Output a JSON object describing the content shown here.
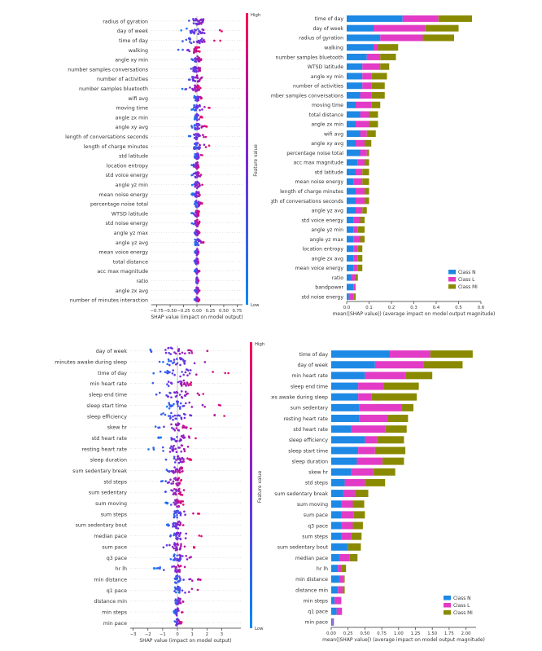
{
  "colors": {
    "classN": "#1e88e5",
    "classL": "#e23bc6",
    "classMl": "#8a8a00",
    "low": "#008bfb",
    "high": "#ff0052",
    "axis": "#333333"
  },
  "chart_data": [
    {
      "type": "scatter",
      "subtype": "shap-beeswarm",
      "xlabel": "SHAP value (impact on model output)",
      "colorbar_label": "Feature value",
      "colorbar_high": "High",
      "colorbar_low": "Low",
      "xlim": [
        -0.85,
        0.85
      ],
      "xticks": [
        -0.75,
        -0.5,
        -0.25,
        0.0,
        0.25,
        0.5,
        0.75
      ],
      "xtick_labels": [
        "−0.75",
        "−0.50",
        "−0.25",
        "0.00",
        "0.25",
        "0.50",
        "0.75"
      ],
      "features": [
        {
          "name": "radius of gyration",
          "min": -0.3,
          "max": 0.35,
          "spread": 0.14
        },
        {
          "name": "day of week",
          "min": -0.3,
          "max": 0.5,
          "spread": 0.16
        },
        {
          "name": "time of day",
          "min": -0.3,
          "max": 0.45,
          "spread": 0.15
        },
        {
          "name": "walking",
          "min": -0.35,
          "max": 0.05,
          "spread": 0.06
        },
        {
          "name": "angle xy min",
          "min": -0.1,
          "max": 0.1,
          "spread": 0.05
        },
        {
          "name": "number samples conversations",
          "min": -0.15,
          "max": 0.15,
          "spread": 0.07
        },
        {
          "name": "number of activities",
          "min": -0.2,
          "max": 0.15,
          "spread": 0.08
        },
        {
          "name": "number samples bluetooth",
          "min": -0.3,
          "max": 0.1,
          "spread": 0.05
        },
        {
          "name": "wifi avg",
          "min": -0.05,
          "max": 0.1,
          "spread": 0.03
        },
        {
          "name": "moving time",
          "min": -0.1,
          "max": 0.25,
          "spread": 0.06
        },
        {
          "name": "angle zx min",
          "min": -0.05,
          "max": 0.1,
          "spread": 0.04
        },
        {
          "name": "angle xy avg",
          "min": -0.1,
          "max": 0.2,
          "spread": 0.05
        },
        {
          "name": "length of conversations seconds",
          "min": -0.15,
          "max": 0.2,
          "spread": 0.06
        },
        {
          "name": "length of charge minutes",
          "min": -0.1,
          "max": 0.25,
          "spread": 0.06
        },
        {
          "name": "std latitude",
          "min": -0.05,
          "max": 0.1,
          "spread": 0.04
        },
        {
          "name": "location entropy",
          "min": -0.1,
          "max": 0.05,
          "spread": 0.03
        },
        {
          "name": "std voice energy",
          "min": -0.1,
          "max": 0.1,
          "spread": 0.04
        },
        {
          "name": "angle yz min",
          "min": -0.1,
          "max": 0.1,
          "spread": 0.04
        },
        {
          "name": "mean noise energy",
          "min": -0.1,
          "max": 0.1,
          "spread": 0.04
        },
        {
          "name": "percentage noise total",
          "min": -0.05,
          "max": 0.1,
          "spread": 0.04
        },
        {
          "name": "WTSD latitude",
          "min": -0.1,
          "max": 0.05,
          "spread": 0.03
        },
        {
          "name": "std noise energy",
          "min": -0.1,
          "max": 0.05,
          "spread": 0.03
        },
        {
          "name": "angle yz max",
          "min": -0.05,
          "max": 0.05,
          "spread": 0.03
        },
        {
          "name": "angle yz avg",
          "min": -0.05,
          "max": 0.15,
          "spread": 0.04
        },
        {
          "name": "mean voice energy",
          "min": -0.05,
          "max": 0.05,
          "spread": 0.03
        },
        {
          "name": "total distance",
          "min": -0.05,
          "max": 0.05,
          "spread": 0.03
        },
        {
          "name": "acc max magnitude",
          "min": -0.05,
          "max": 0.05,
          "spread": 0.03
        },
        {
          "name": "ratio",
          "min": -0.02,
          "max": 0.03,
          "spread": 0.015
        },
        {
          "name": "angle zx avg",
          "min": -0.05,
          "max": 0.05,
          "spread": 0.03
        },
        {
          "name": "number of minutes interaction",
          "min": -0.05,
          "max": 0.05,
          "spread": 0.025
        }
      ]
    },
    {
      "type": "bar",
      "orientation": "horizontal",
      "stacked": true,
      "xlabel": "mean(|SHAP value|) (average impact on model output magnitude)",
      "xlim": [
        0,
        0.6
      ],
      "xticks": [
        0.0,
        0.1,
        0.2,
        0.3,
        0.4,
        0.5,
        0.6
      ],
      "xtick_labels": [
        "0.0",
        "0.1",
        "0.2",
        "0.3",
        "0.4",
        "0.5",
        "0.6"
      ],
      "legend_position": "bottom-right",
      "categories": [
        "time of day",
        "day of week",
        "radius of gyration",
        "walking",
        "number samples bluetooth",
        "WTSD latitude",
        "angle xy min",
        "number of activities",
        "number samples conversations",
        "moving time",
        "total distance",
        "angle zx min",
        "wifi avg",
        "angle xy avg",
        "percentage noise total",
        "acc max magnitude",
        "std latitude",
        "mean noise energy",
        "length of charge minutes",
        "length of conversations seconds",
        "angle yz avg",
        "std voice energy",
        "angle yz min",
        "angle yz max",
        "location entropy",
        "angle zx avg",
        "mean voice energy",
        "ratio",
        "bandpower",
        "std noise energy"
      ],
      "series": [
        {
          "name": "Class N",
          "values": [
            0.25,
            0.12,
            0.15,
            0.12,
            0.09,
            0.07,
            0.07,
            0.07,
            0.06,
            0.04,
            0.06,
            0.04,
            0.06,
            0.04,
            0.06,
            0.05,
            0.04,
            0.03,
            0.04,
            0.04,
            0.04,
            0.03,
            0.03,
            0.03,
            0.03,
            0.03,
            0.03,
            0.02,
            0.03,
            0.01
          ]
        },
        {
          "name": "Class L",
          "values": [
            0.16,
            0.23,
            0.19,
            0.02,
            0.06,
            0.08,
            0.04,
            0.04,
            0.05,
            0.07,
            0.04,
            0.06,
            0.03,
            0.04,
            0.03,
            0.03,
            0.03,
            0.04,
            0.04,
            0.04,
            0.03,
            0.03,
            0.02,
            0.03,
            0.02,
            0.02,
            0.02,
            0.02,
            0.01,
            0.02
          ]
        },
        {
          "name": "Class Ml",
          "values": [
            0.15,
            0.15,
            0.14,
            0.09,
            0.07,
            0.04,
            0.07,
            0.06,
            0.06,
            0.04,
            0.04,
            0.04,
            0.04,
            0.03,
            0.01,
            0.02,
            0.03,
            0.03,
            0.02,
            0.02,
            0.02,
            0.02,
            0.03,
            0.02,
            0.02,
            0.02,
            0.02,
            0.01,
            0.0,
            0.01
          ]
        }
      ]
    },
    {
      "type": "scatter",
      "subtype": "shap-beeswarm",
      "xlabel": "SHAP value (impact on model output)",
      "colorbar_label": "Feature value",
      "colorbar_high": "High",
      "colorbar_low": "Low",
      "xlim": [
        -3.2,
        4.3
      ],
      "xticks": [
        -3,
        -2,
        -1,
        0,
        1,
        2,
        3
      ],
      "xtick_labels": [
        "−3",
        "−2",
        "−1",
        "0",
        "1",
        "2",
        "3"
      ],
      "features": [
        {
          "name": "day of week",
          "min": -2.8,
          "max": 2.4,
          "spread": 1.0
        },
        {
          "name": "minutes awake during sleep",
          "min": -1.5,
          "max": 3.5,
          "spread": 0.8
        },
        {
          "name": "time of day",
          "min": -2.0,
          "max": 3.5,
          "spread": 0.9
        },
        {
          "name": "min heart rate",
          "min": -1.7,
          "max": 1.5,
          "spread": 0.7
        },
        {
          "name": "sleep end time",
          "min": -2.0,
          "max": 2.0,
          "spread": 0.7
        },
        {
          "name": "sleep start time",
          "min": -1.0,
          "max": 3.0,
          "spread": 0.6
        },
        {
          "name": "sleep efficiency",
          "min": -1.5,
          "max": 3.7,
          "spread": 0.6
        },
        {
          "name": "skew hr",
          "min": -1.7,
          "max": 1.0,
          "spread": 0.5
        },
        {
          "name": "std heart rate",
          "min": -1.3,
          "max": 1.6,
          "spread": 0.5
        },
        {
          "name": "resting heart rate",
          "min": -2.2,
          "max": 2.0,
          "spread": 0.5
        },
        {
          "name": "sleep duration",
          "min": -1.0,
          "max": 1.0,
          "spread": 0.45
        },
        {
          "name": "sum sedentary break",
          "min": -1.2,
          "max": 0.6,
          "spread": 0.35
        },
        {
          "name": "std steps",
          "min": -1.2,
          "max": 0.4,
          "spread": 0.3
        },
        {
          "name": "sum sedentary",
          "min": -1.0,
          "max": 0.5,
          "spread": 0.3
        },
        {
          "name": "sum moving",
          "min": -0.8,
          "max": 0.4,
          "spread": 0.25
        },
        {
          "name": "sum steps",
          "min": -0.5,
          "max": 1.6,
          "spread": 0.25
        },
        {
          "name": "sum sedentary bout",
          "min": -0.8,
          "max": 0.8,
          "spread": 0.3
        },
        {
          "name": "median pace",
          "min": -1.0,
          "max": 1.8,
          "spread": 0.25
        },
        {
          "name": "sum pace",
          "min": -1.7,
          "max": 1.2,
          "spread": 0.25
        },
        {
          "name": "q3 pace",
          "min": -0.5,
          "max": 1.2,
          "spread": 0.25
        },
        {
          "name": "hr lh",
          "min": -1.6,
          "max": 0.8,
          "spread": 0.25
        },
        {
          "name": "min distance",
          "min": -0.3,
          "max": 1.7,
          "spread": 0.2
        },
        {
          "name": "q1 pace",
          "min": -0.3,
          "max": 1.5,
          "spread": 0.2
        },
        {
          "name": "distance min",
          "min": -0.3,
          "max": 0.5,
          "spread": 0.15
        },
        {
          "name": "min steps",
          "min": -0.3,
          "max": 0.4,
          "spread": 0.15
        },
        {
          "name": "min pace",
          "min": -0.2,
          "max": 0.3,
          "spread": 0.1
        }
      ]
    },
    {
      "type": "bar",
      "orientation": "horizontal",
      "stacked": true,
      "xlabel": "mean(|SHAP value|) (average impact on model output magnitude)",
      "xlim": [
        0,
        2.15
      ],
      "xticks": [
        0.0,
        0.25,
        0.5,
        0.75,
        1.0,
        1.25,
        1.5,
        1.75,
        2.0
      ],
      "xtick_labels": [
        "0.00",
        "0.25",
        "0.50",
        "0.75",
        "1.00",
        "1.25",
        "1.50",
        "1.75",
        "2.00"
      ],
      "legend_position": "bottom-right",
      "categories": [
        "time of day",
        "day of week",
        "min heart rate",
        "sleep end time",
        "minutes awake during sleep",
        "sum sedentary",
        "resting heart rate",
        "std heart rate",
        "sleep efficiency",
        "sleep start time",
        "sleep duration",
        "skew hr",
        "std steps",
        "sum sedentary break",
        "sum moving",
        "sum pace",
        "q3 pace",
        "sum steps",
        "sum sedentary bout",
        "median pace",
        "hr lh",
        "min distance",
        "distance min",
        "min steps",
        "q1 pace",
        "min pace"
      ],
      "series": [
        {
          "name": "Class N",
          "values": [
            0.87,
            0.65,
            0.5,
            0.4,
            0.4,
            0.42,
            0.42,
            0.3,
            0.5,
            0.4,
            0.38,
            0.3,
            0.2,
            0.18,
            0.15,
            0.15,
            0.15,
            0.15,
            0.25,
            0.12,
            0.1,
            0.12,
            0.1,
            0.05,
            0.08,
            0.02
          ]
        },
        {
          "name": "Class L",
          "values": [
            0.6,
            0.72,
            0.6,
            0.38,
            0.2,
            0.62,
            0.42,
            0.5,
            0.18,
            0.25,
            0.38,
            0.32,
            0.3,
            0.17,
            0.17,
            0.18,
            0.17,
            0.15,
            0.0,
            0.15,
            0.05,
            0.07,
            0.07,
            0.1,
            0.08,
            0.02
          ]
        },
        {
          "name": "Class Ml",
          "values": [
            0.63,
            0.58,
            0.4,
            0.52,
            0.67,
            0.18,
            0.3,
            0.32,
            0.4,
            0.45,
            0.32,
            0.33,
            0.3,
            0.2,
            0.17,
            0.17,
            0.15,
            0.15,
            0.19,
            0.12,
            0.07,
            0.01,
            0.03,
            0.0,
            0.0,
            0.0
          ]
        }
      ]
    }
  ]
}
